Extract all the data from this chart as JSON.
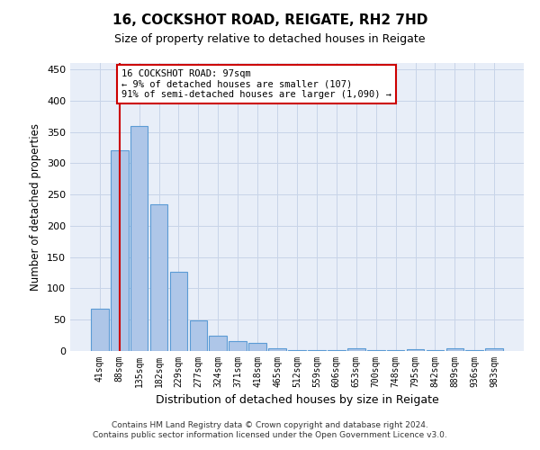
{
  "title": "16, COCKSHOT ROAD, REIGATE, RH2 7HD",
  "subtitle": "Size of property relative to detached houses in Reigate",
  "xlabel": "Distribution of detached houses by size in Reigate",
  "ylabel": "Number of detached properties",
  "footer_line1": "Contains HM Land Registry data © Crown copyright and database right 2024.",
  "footer_line2": "Contains public sector information licensed under the Open Government Licence v3.0.",
  "categories": [
    "41sqm",
    "88sqm",
    "135sqm",
    "182sqm",
    "229sqm",
    "277sqm",
    "324sqm",
    "371sqm",
    "418sqm",
    "465sqm",
    "512sqm",
    "559sqm",
    "606sqm",
    "653sqm",
    "700sqm",
    "748sqm",
    "795sqm",
    "842sqm",
    "889sqm",
    "936sqm",
    "983sqm"
  ],
  "values": [
    67,
    320,
    360,
    235,
    127,
    49,
    25,
    16,
    13,
    5,
    2,
    1,
    1,
    4,
    1,
    1,
    3,
    1,
    4,
    1,
    4
  ],
  "bar_color": "#aec6e8",
  "bar_edge_color": "#5b9bd5",
  "property_line_x": 1.0,
  "annotation_text_line1": "16 COCKSHOT ROAD: 97sqm",
  "annotation_text_line2": "← 9% of detached houses are smaller (107)",
  "annotation_text_line3": "91% of semi-detached houses are larger (1,090) →",
  "annotation_box_color": "#ffffff",
  "annotation_box_edge": "#cc0000",
  "property_line_color": "#cc0000",
  "ylim": [
    0,
    460
  ],
  "yticks": [
    0,
    50,
    100,
    150,
    200,
    250,
    300,
    350,
    400,
    450
  ],
  "background_color": "#ffffff",
  "ax_facecolor": "#e8eef8",
  "grid_color": "#c8d4e8"
}
